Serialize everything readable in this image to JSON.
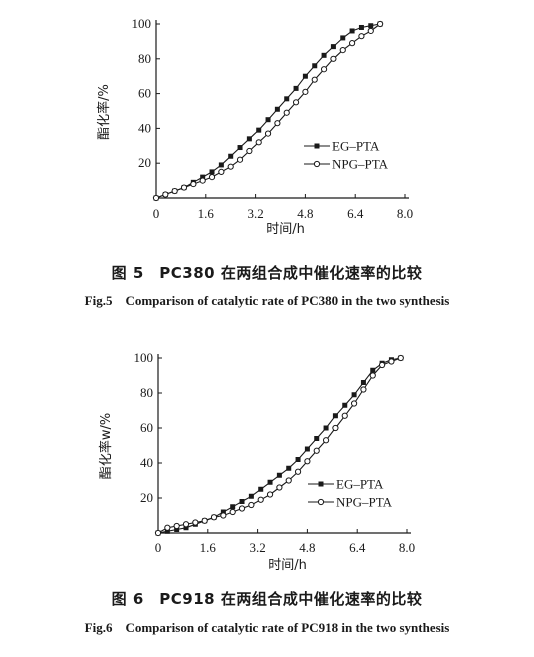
{
  "chart_data": [
    {
      "type": "line",
      "caption_cn": "图 5　PC380 在两组合成中催化速率的比较",
      "caption_en": "Fig.5　Comparison of catalytic rate of PC380 in the two synthesis",
      "xlabel": "时间/h",
      "ylabel": "酯化率/%",
      "xlim": [
        0,
        8.0
      ],
      "ylim": [
        0,
        100
      ],
      "xticks": [
        "0",
        "1.6",
        "3.2",
        "4.8",
        "6.4",
        "8.0"
      ],
      "yticks": [
        "20",
        "40",
        "60",
        "80",
        "100"
      ],
      "legend_position": "right",
      "series": [
        {
          "name": "EG–PTA",
          "marker": "filled-square",
          "x": [
            0,
            0.3,
            0.6,
            0.9,
            1.2,
            1.5,
            1.8,
            2.1,
            2.4,
            2.7,
            3.0,
            3.3,
            3.6,
            3.9,
            4.2,
            4.5,
            4.8,
            5.1,
            5.4,
            5.7,
            6.0,
            6.3,
            6.6,
            6.9,
            7.2
          ],
          "y": [
            0,
            2,
            4,
            6,
            9,
            12,
            15,
            19,
            24,
            29,
            34,
            39,
            45,
            51,
            57,
            63,
            70,
            76,
            82,
            87,
            92,
            96,
            98,
            99,
            100
          ]
        },
        {
          "name": "NPG–PTA",
          "marker": "open-circle",
          "x": [
            0,
            0.3,
            0.6,
            0.9,
            1.2,
            1.5,
            1.8,
            2.1,
            2.4,
            2.7,
            3.0,
            3.3,
            3.6,
            3.9,
            4.2,
            4.5,
            4.8,
            5.1,
            5.4,
            5.7,
            6.0,
            6.3,
            6.6,
            6.9,
            7.2
          ],
          "y": [
            0,
            2,
            4,
            6,
            8,
            10,
            12,
            15,
            18,
            22,
            27,
            32,
            37,
            43,
            49,
            55,
            61,
            68,
            74,
            80,
            85,
            89,
            93,
            96,
            100
          ]
        }
      ]
    },
    {
      "type": "line",
      "caption_cn": "图 6　PC918 在两组合成中催化速率的比较",
      "caption_en": "Fig.6　Comparison of catalytic rate of PC918 in the two synthesis",
      "xlabel": "时间/h",
      "ylabel": "酯化率w/%",
      "xlim": [
        0,
        8.0
      ],
      "ylim": [
        0,
        100
      ],
      "xticks": [
        "0",
        "1.6",
        "3.2",
        "4.8",
        "6.4",
        "8.0"
      ],
      "yticks": [
        "20",
        "40",
        "60",
        "80",
        "100"
      ],
      "legend_position": "lower-right",
      "series": [
        {
          "name": "EG–PTA",
          "marker": "filled-square",
          "x": [
            0,
            0.3,
            0.6,
            0.9,
            1.2,
            1.5,
            1.8,
            2.1,
            2.4,
            2.7,
            3.0,
            3.3,
            3.6,
            3.9,
            4.2,
            4.5,
            4.8,
            5.1,
            5.4,
            5.7,
            6.0,
            6.3,
            6.6,
            6.9,
            7.2,
            7.5,
            7.8
          ],
          "y": [
            0,
            1,
            2,
            3,
            5,
            7,
            9,
            12,
            15,
            18,
            21,
            25,
            29,
            33,
            37,
            42,
            48,
            54,
            60,
            67,
            73,
            79,
            86,
            93,
            97,
            99,
            100
          ]
        },
        {
          "name": "NPG–PTA",
          "marker": "open-circle",
          "x": [
            0,
            0.3,
            0.6,
            0.9,
            1.2,
            1.5,
            1.8,
            2.1,
            2.4,
            2.7,
            3.0,
            3.3,
            3.6,
            3.9,
            4.2,
            4.5,
            4.8,
            5.1,
            5.4,
            5.7,
            6.0,
            6.3,
            6.6,
            6.9,
            7.2,
            7.5,
            7.8
          ],
          "y": [
            0,
            3,
            4,
            5,
            6,
            7,
            9,
            10,
            12,
            14,
            16,
            19,
            22,
            26,
            30,
            35,
            41,
            47,
            53,
            60,
            67,
            74,
            82,
            90,
            96,
            98,
            100
          ]
        }
      ]
    }
  ]
}
